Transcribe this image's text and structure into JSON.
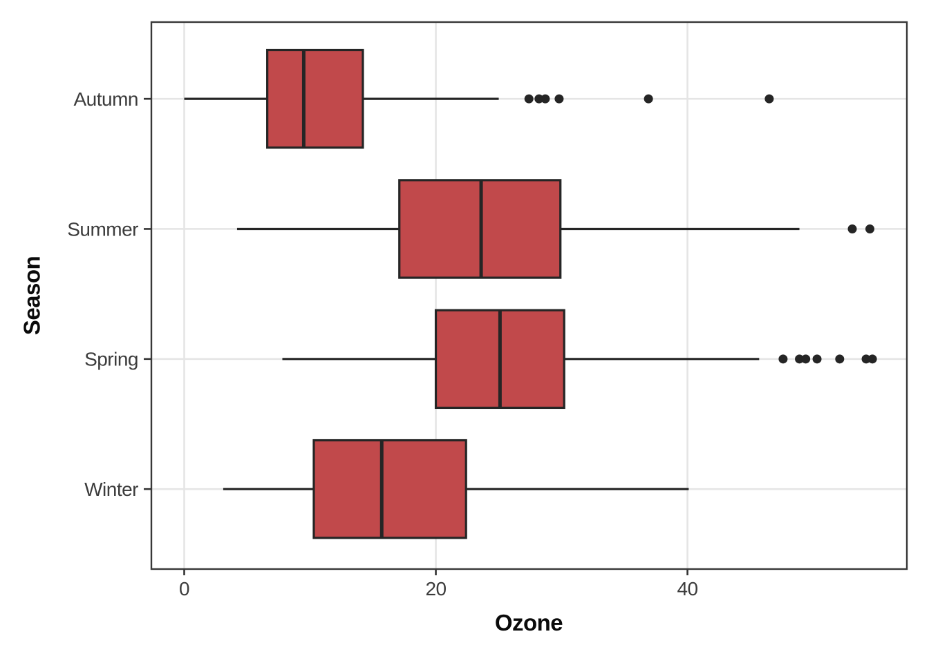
{
  "figure": {
    "background": "#ffffff",
    "panel_border_color": "#383838",
    "grid_color": "#e5e5e5",
    "axis_tick_color": "#333333",
    "axis_text_color": "#3c3c3c",
    "axis_title_color": "#0a0a0a",
    "box_fill": "#c1494b",
    "box_stroke": "#252525",
    "outlier_color": "#252525"
  },
  "chart_data": {
    "type": "boxplot",
    "orientation": "horizontal",
    "title": "",
    "xlabel": "Ozone",
    "ylabel": "Season",
    "x_ticks": [
      0,
      20,
      40
    ],
    "xlim": [
      -2.61,
      57.44
    ],
    "grid": "major-only",
    "legend": "none",
    "categories": [
      "Autumn",
      "Summer",
      "Spring",
      "Winter"
    ],
    "series": [
      {
        "category": "Autumn",
        "whisker_low": 0,
        "q1": 6.6,
        "median": 9.5,
        "q3": 14.2,
        "whisker_high": 25.0,
        "outliers": [
          27.4,
          28.2,
          28.7,
          29.8,
          36.9,
          46.5
        ]
      },
      {
        "category": "Summer",
        "whisker_low": 4.2,
        "q1": 17.1,
        "median": 23.6,
        "q3": 29.9,
        "whisker_high": 48.9,
        "outliers": [
          53.1,
          54.5
        ]
      },
      {
        "category": "Spring",
        "whisker_low": 7.8,
        "q1": 20.0,
        "median": 25.1,
        "q3": 30.2,
        "whisker_high": 45.7,
        "outliers": [
          47.6,
          48.9,
          49.4,
          50.3,
          52.1,
          54.2,
          54.7
        ]
      },
      {
        "category": "Winter",
        "whisker_low": 3.1,
        "q1": 10.3,
        "median": 15.7,
        "q3": 22.4,
        "whisker_high": 40.1,
        "outliers": []
      }
    ]
  }
}
